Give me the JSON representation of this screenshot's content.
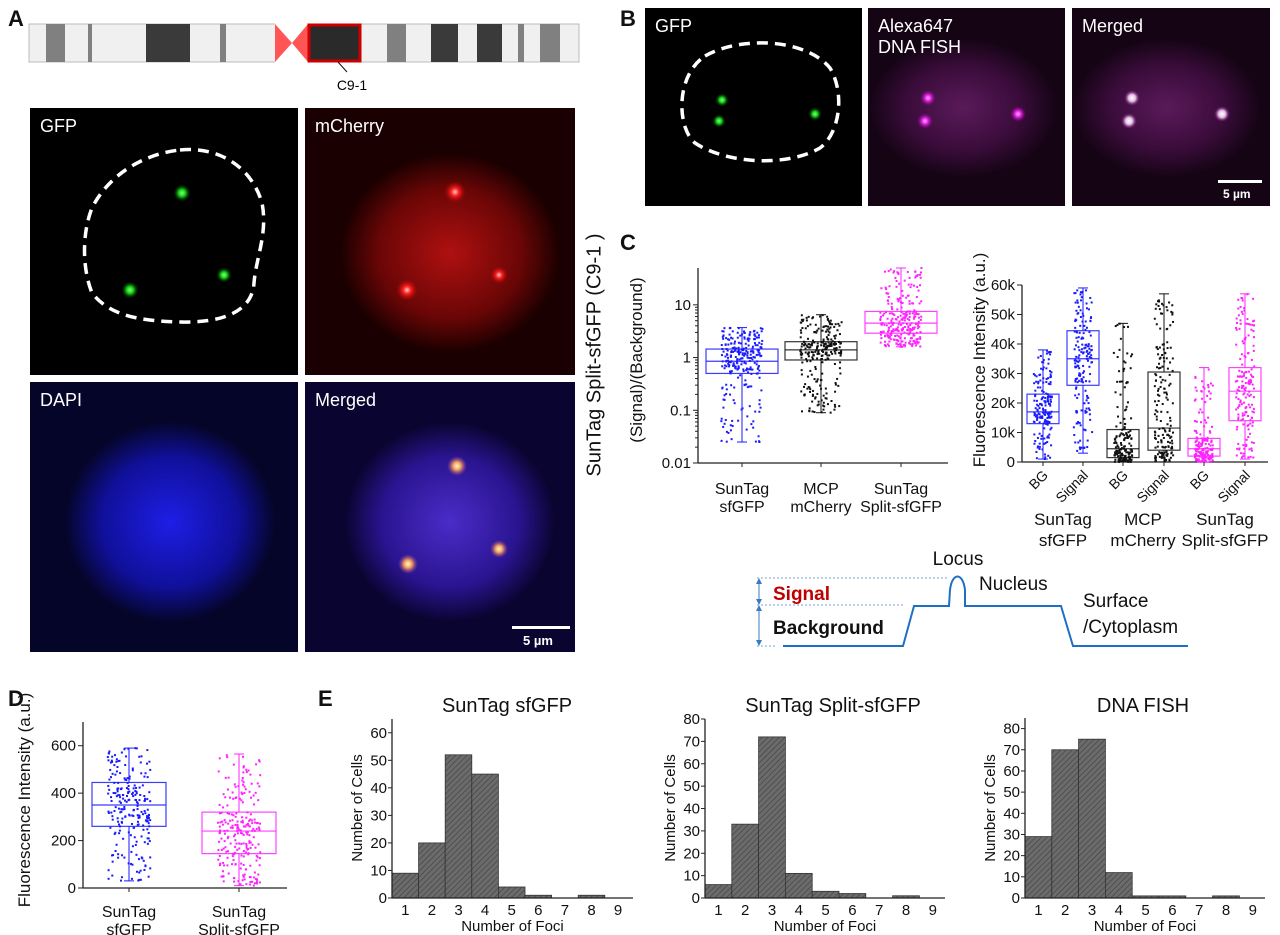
{
  "panel_labels": {
    "a": "A",
    "b": "B",
    "c": "C",
    "d": "D",
    "e": "E"
  },
  "panel_a": {
    "chromosome_label": "C9-1",
    "images": [
      {
        "label": "GFP"
      },
      {
        "label": "mCherry"
      },
      {
        "label": "DAPI"
      },
      {
        "label": "Merged"
      }
    ],
    "scale_bar": "5 µm",
    "side_label": "SunTag Split-sfGFP (C9-1 )"
  },
  "panel_b": {
    "images": [
      {
        "label": "GFP"
      },
      {
        "label_line1": "Alexa647",
        "label_line2": "DNA FISH"
      },
      {
        "label": "Merged"
      }
    ],
    "scale_bar": "5 µm"
  },
  "schematic": {
    "locus": "Locus",
    "signal": "Signal",
    "background": "Background",
    "nucleus": "Nucleus",
    "surface_line1": "Surface",
    "surface_line2": "/Cytoplasm"
  },
  "colors": {
    "sfgfp": "#1a1aff",
    "mcherry": "#111111",
    "split_sfgfp": "#ff22ff",
    "signal_text": "#c00000",
    "schematic_line": "#1f6fc5",
    "histogram_fill": "#6b6b6b",
    "centromere": "#ff5555",
    "highlight_box": "#cc0000"
  },
  "chart_data": [
    {
      "id": "c_ratio",
      "type": "box",
      "ylabel": "(Signal)/(Background)",
      "yscale": "log",
      "ylim": [
        0.01,
        50
      ],
      "yticks": [
        {
          "v": 0.01,
          "label": "0.01"
        },
        {
          "v": 0.1,
          "label": "0.1"
        },
        {
          "v": 1,
          "label": "1"
        },
        {
          "v": 10,
          "label": "10"
        }
      ],
      "categories": [
        {
          "lines": [
            "SunTag",
            "sfGFP"
          ],
          "color": "#1a1aff",
          "whisker_low": 0.025,
          "q1": 0.5,
          "median": 0.85,
          "q3": 1.45,
          "whisker_high": 3.7
        },
        {
          "lines": [
            "MCP",
            "mCherry"
          ],
          "color": "#111111",
          "whisker_low": 0.09,
          "q1": 0.9,
          "median": 1.4,
          "q3": 2.0,
          "whisker_high": 6.5
        },
        {
          "lines": [
            "SunTag",
            "Split-sfGFP"
          ],
          "color": "#ff22ff",
          "whisker_low": 1.6,
          "q1": 2.9,
          "median": 4.5,
          "q3": 7.5,
          "whisker_high": 50
        }
      ]
    },
    {
      "id": "c_intensity",
      "type": "box",
      "ylabel": "Fluorescence Intensity (a.u.)",
      "ylim": [
        0,
        60000
      ],
      "yticks": [
        {
          "v": 0,
          "label": "0"
        },
        {
          "v": 10000,
          "label": "10k"
        },
        {
          "v": 20000,
          "label": "20k"
        },
        {
          "v": 30000,
          "label": "30k"
        },
        {
          "v": 40000,
          "label": "40k"
        },
        {
          "v": 50000,
          "label": "50k"
        },
        {
          "v": 60000,
          "label": "60k"
        }
      ],
      "categories": [
        {
          "label": "BG",
          "color": "#1a1aff",
          "whisker_low": 1000,
          "q1": 13000,
          "median": 17000,
          "q3": 23000,
          "whisker_high": 38000
        },
        {
          "label": "Signal",
          "color": "#1a1aff",
          "whisker_low": 3000,
          "q1": 26000,
          "median": 35000,
          "q3": 44500,
          "whisker_high": 59000
        },
        {
          "label": "BG",
          "color": "#111111",
          "whisker_low": 0,
          "q1": 1500,
          "median": 4500,
          "q3": 11000,
          "whisker_high": 47000
        },
        {
          "label": "Signal",
          "color": "#111111",
          "whisker_low": 0,
          "q1": 4000,
          "median": 11500,
          "q3": 30500,
          "whisker_high": 57000
        },
        {
          "label": "BG",
          "color": "#ff22ff",
          "whisker_low": 0,
          "q1": 2000,
          "median": 4500,
          "q3": 8000,
          "whisker_high": 32000
        },
        {
          "label": "Signal",
          "color": "#ff22ff",
          "whisker_low": 1000,
          "q1": 14000,
          "median": 24000,
          "q3": 32000,
          "whisker_high": 57000
        }
      ],
      "groups": [
        {
          "lines": [
            "SunTag",
            "sfGFP"
          ]
        },
        {
          "lines": [
            "MCP",
            "mCherry"
          ]
        },
        {
          "lines": [
            "SunTag",
            "Split-sfGFP"
          ]
        }
      ]
    },
    {
      "id": "d_intensity",
      "type": "box",
      "ylabel": "Fluorescence Intensity (a.u.)",
      "ylim": [
        0,
        700
      ],
      "yticks": [
        {
          "v": 0,
          "label": "0"
        },
        {
          "v": 200,
          "label": "200"
        },
        {
          "v": 400,
          "label": "400"
        },
        {
          "v": 600,
          "label": "600"
        }
      ],
      "categories": [
        {
          "lines": [
            "SunTag",
            "sfGFP"
          ],
          "color": "#1a1aff",
          "whisker_low": 30,
          "q1": 260,
          "median": 350,
          "q3": 445,
          "whisker_high": 590
        },
        {
          "lines": [
            "SunTag",
            "Split-sfGFP"
          ],
          "color": "#ff22ff",
          "whisker_low": 10,
          "q1": 145,
          "median": 240,
          "q3": 320,
          "whisker_high": 565
        }
      ]
    },
    {
      "id": "e_sfgfp",
      "type": "bar",
      "title": "SunTag sfGFP",
      "xlabel": "Number of Foci",
      "ylabel": "Number of Cells",
      "categories": [
        "1",
        "2",
        "3",
        "4",
        "5",
        "6",
        "7",
        "8",
        "9"
      ],
      "values": [
        9,
        20,
        52,
        45,
        4,
        1,
        0,
        1,
        0
      ],
      "ylim": [
        0,
        65
      ],
      "yticks": [
        "0",
        "10",
        "20",
        "30",
        "40",
        "50",
        "60"
      ]
    },
    {
      "id": "e_split",
      "type": "bar",
      "title": "SunTag Split-sfGFP",
      "xlabel": "Number of Foci",
      "ylabel": "Number of Cells",
      "categories": [
        "1",
        "2",
        "3",
        "4",
        "5",
        "6",
        "7",
        "8",
        "9"
      ],
      "values": [
        6,
        33,
        72,
        11,
        3,
        2,
        0,
        1,
        0
      ],
      "ylim": [
        0,
        80
      ],
      "yticks": [
        "0",
        "10",
        "20",
        "30",
        "40",
        "50",
        "60",
        "70",
        "80"
      ]
    },
    {
      "id": "e_fish",
      "type": "bar",
      "title": "DNA FISH",
      "xlabel": "Number of Foci",
      "ylabel": "Number of Cells",
      "categories": [
        "1",
        "2",
        "3",
        "4",
        "5",
        "6",
        "7",
        "8",
        "9"
      ],
      "values": [
        29,
        70,
        75,
        12,
        1,
        1,
        0,
        1,
        0
      ],
      "ylim": [
        0,
        85
      ],
      "yticks": [
        "0",
        "10",
        "20",
        "30",
        "40",
        "50",
        "60",
        "70",
        "80"
      ]
    }
  ]
}
